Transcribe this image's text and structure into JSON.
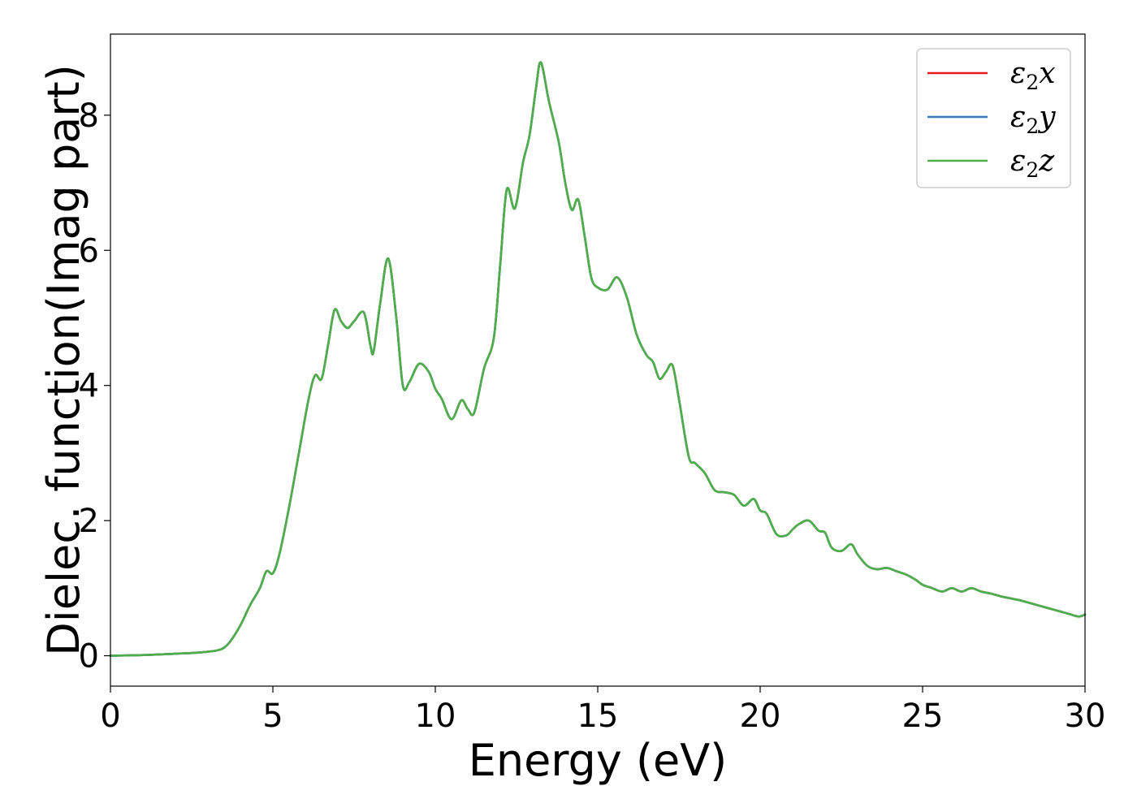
{
  "chart_data": {
    "type": "line",
    "xlabel": "Energy (eV)",
    "ylabel": "Dielec. function(Imag part)",
    "xlim": [
      0,
      30
    ],
    "ylim": [
      -0.45,
      9.2
    ],
    "xticks": [
      0,
      5,
      10,
      15,
      20,
      25,
      30
    ],
    "yticks": [
      0,
      2,
      4,
      6,
      8
    ],
    "grid": false,
    "legend_position": "top-right",
    "x": [
      0,
      1,
      2,
      2.5,
      3,
      3.3,
      3.5,
      3.7,
      4.0,
      4.3,
      4.6,
      4.8,
      5.0,
      5.2,
      5.5,
      5.8,
      6.1,
      6.3,
      6.5,
      6.7,
      6.9,
      7.1,
      7.3,
      7.5,
      7.8,
      8.0,
      8.1,
      8.3,
      8.55,
      8.8,
      9.0,
      9.2,
      9.5,
      9.8,
      10.0,
      10.2,
      10.5,
      10.8,
      11.0,
      11.2,
      11.5,
      11.8,
      12.0,
      12.2,
      12.45,
      12.7,
      12.9,
      13.1,
      13.25,
      13.5,
      13.8,
      14.0,
      14.2,
      14.4,
      14.6,
      14.8,
      15.0,
      15.3,
      15.6,
      15.9,
      16.2,
      16.5,
      16.7,
      16.9,
      17.1,
      17.3,
      17.5,
      17.8,
      18.0,
      18.3,
      18.6,
      18.9,
      19.2,
      19.5,
      19.8,
      20.0,
      20.2,
      20.5,
      20.8,
      21.0,
      21.2,
      21.5,
      21.8,
      22.0,
      22.2,
      22.5,
      22.8,
      23.0,
      23.3,
      23.6,
      23.9,
      24.2,
      24.5,
      24.8,
      25.0,
      25.3,
      25.6,
      25.9,
      26.2,
      26.5,
      26.8,
      27.1,
      27.4,
      27.7,
      28.0,
      28.3,
      28.6,
      28.9,
      29.2,
      29.5,
      29.8,
      30.0
    ],
    "series": [
      {
        "name": "ε2x",
        "label_base": "ε",
        "label_sub": "2",
        "label_suffix": "x",
        "color": "#e41a1c",
        "values": [
          0.0,
          0.01,
          0.03,
          0.04,
          0.06,
          0.08,
          0.12,
          0.22,
          0.45,
          0.75,
          1.0,
          1.25,
          1.22,
          1.5,
          2.2,
          3.0,
          3.8,
          4.15,
          4.1,
          4.6,
          5.12,
          4.95,
          4.85,
          4.95,
          5.08,
          4.6,
          4.5,
          5.2,
          5.88,
          5.0,
          4.0,
          4.05,
          4.32,
          4.2,
          3.95,
          3.8,
          3.5,
          3.78,
          3.65,
          3.6,
          4.25,
          4.7,
          5.8,
          6.9,
          6.62,
          7.3,
          7.7,
          8.4,
          8.78,
          8.2,
          7.6,
          7.0,
          6.6,
          6.75,
          6.2,
          5.6,
          5.45,
          5.42,
          5.6,
          5.3,
          4.75,
          4.45,
          4.35,
          4.1,
          4.2,
          4.3,
          3.8,
          2.95,
          2.85,
          2.7,
          2.45,
          2.42,
          2.38,
          2.22,
          2.32,
          2.15,
          2.1,
          1.8,
          1.78,
          1.87,
          1.95,
          2.0,
          1.85,
          1.82,
          1.6,
          1.55,
          1.65,
          1.5,
          1.33,
          1.28,
          1.3,
          1.25,
          1.2,
          1.12,
          1.05,
          1.0,
          0.95,
          1.0,
          0.95,
          1.0,
          0.95,
          0.92,
          0.88,
          0.85,
          0.82,
          0.78,
          0.74,
          0.7,
          0.66,
          0.62,
          0.58,
          0.61
        ]
      },
      {
        "name": "ε2y",
        "label_base": "ε",
        "label_sub": "2",
        "label_suffix": "y",
        "color": "#377eb8",
        "values": [
          0.0,
          0.01,
          0.03,
          0.04,
          0.06,
          0.08,
          0.12,
          0.22,
          0.45,
          0.75,
          1.0,
          1.25,
          1.22,
          1.5,
          2.2,
          3.0,
          3.8,
          4.15,
          4.1,
          4.6,
          5.12,
          4.95,
          4.85,
          4.95,
          5.08,
          4.6,
          4.5,
          5.2,
          5.88,
          5.0,
          4.0,
          4.05,
          4.32,
          4.2,
          3.95,
          3.8,
          3.5,
          3.78,
          3.65,
          3.6,
          4.25,
          4.7,
          5.8,
          6.9,
          6.62,
          7.3,
          7.7,
          8.4,
          8.78,
          8.2,
          7.6,
          7.0,
          6.6,
          6.75,
          6.2,
          5.6,
          5.45,
          5.42,
          5.6,
          5.3,
          4.75,
          4.45,
          4.35,
          4.1,
          4.2,
          4.3,
          3.8,
          2.95,
          2.85,
          2.7,
          2.45,
          2.42,
          2.38,
          2.22,
          2.32,
          2.15,
          2.1,
          1.8,
          1.78,
          1.87,
          1.95,
          2.0,
          1.85,
          1.82,
          1.6,
          1.55,
          1.65,
          1.5,
          1.33,
          1.28,
          1.3,
          1.25,
          1.2,
          1.12,
          1.05,
          1.0,
          0.95,
          1.0,
          0.95,
          1.0,
          0.95,
          0.92,
          0.88,
          0.85,
          0.82,
          0.78,
          0.74,
          0.7,
          0.66,
          0.62,
          0.58,
          0.61
        ]
      },
      {
        "name": "ε2z",
        "label_base": "ε",
        "label_sub": "2",
        "label_suffix": "z",
        "color": "#4daf4a",
        "values": [
          0.0,
          0.01,
          0.03,
          0.04,
          0.06,
          0.08,
          0.12,
          0.22,
          0.45,
          0.75,
          1.0,
          1.25,
          1.22,
          1.5,
          2.2,
          3.0,
          3.8,
          4.15,
          4.1,
          4.6,
          5.12,
          4.95,
          4.85,
          4.95,
          5.08,
          4.6,
          4.5,
          5.2,
          5.88,
          5.0,
          4.0,
          4.05,
          4.32,
          4.2,
          3.95,
          3.8,
          3.5,
          3.78,
          3.65,
          3.6,
          4.25,
          4.7,
          5.8,
          6.9,
          6.62,
          7.3,
          7.7,
          8.4,
          8.78,
          8.2,
          7.6,
          7.0,
          6.6,
          6.75,
          6.2,
          5.6,
          5.45,
          5.42,
          5.6,
          5.3,
          4.75,
          4.45,
          4.35,
          4.1,
          4.2,
          4.3,
          3.8,
          2.95,
          2.85,
          2.7,
          2.45,
          2.42,
          2.38,
          2.22,
          2.32,
          2.15,
          2.1,
          1.8,
          1.78,
          1.87,
          1.95,
          2.0,
          1.85,
          1.82,
          1.6,
          1.55,
          1.65,
          1.5,
          1.33,
          1.28,
          1.3,
          1.25,
          1.2,
          1.12,
          1.05,
          1.0,
          0.95,
          1.0,
          0.95,
          1.0,
          0.95,
          0.92,
          0.88,
          0.85,
          0.82,
          0.78,
          0.74,
          0.7,
          0.66,
          0.62,
          0.58,
          0.61
        ]
      }
    ]
  }
}
